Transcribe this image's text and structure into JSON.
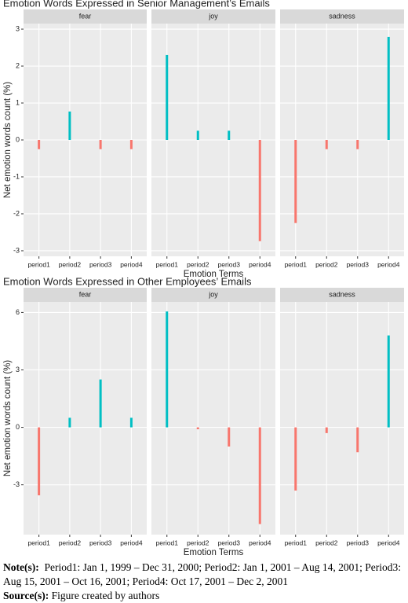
{
  "chart_data": [
    {
      "type": "bar",
      "title": "Emotion Words Expressed in Senior Management’s Emails",
      "x_label": "Emotion Terms",
      "y_label": "Net emotion words count (%)",
      "categories": [
        "period1",
        "period2",
        "period3",
        "period4"
      ],
      "facets": [
        {
          "name": "fear",
          "values": [
            -0.25,
            0.77,
            -0.25,
            -0.25
          ]
        },
        {
          "name": "joy",
          "values": [
            2.3,
            0.25,
            0.25,
            -2.74
          ]
        },
        {
          "name": "sadness",
          "values": [
            -2.25,
            -0.25,
            -0.25,
            2.79
          ]
        }
      ],
      "positive_color": "#00BFC4",
      "negative_color": "#F8766D",
      "ylim": [
        -3.15,
        3.15
      ],
      "yticks": [
        -3,
        -2,
        -1,
        0,
        1,
        2,
        3
      ],
      "grid": true
    },
    {
      "type": "bar",
      "title": "Emotion Words Expressed in Other Employees’ Emails",
      "x_label": "Emotion Terms",
      "y_label": "Net emotion words count (%)",
      "categories": [
        "period1",
        "period2",
        "period3",
        "period4"
      ],
      "facets": [
        {
          "name": "fear",
          "values": [
            -3.55,
            0.5,
            2.5,
            0.5
          ]
        },
        {
          "name": "joy",
          "values": [
            6.05,
            -0.1,
            -1.0,
            -5.05
          ]
        },
        {
          "name": "sadness",
          "values": [
            -3.3,
            -0.3,
            -1.3,
            4.8
          ]
        }
      ],
      "positive_color": "#00BFC4",
      "negative_color": "#F8766D",
      "ylim": [
        -5.6,
        6.55
      ],
      "yticks": [
        -3,
        0,
        3,
        6
      ],
      "grid": true
    }
  ],
  "notes": {
    "note_label": "Note(s):",
    "note_text": "Period1: Jan 1, 1999 – Dec 31, 2000; Period2: Jan 1, 2001 – Aug 14, 2001; Period3: Aug 15, 2001 – Oct 16, 2001; Period4: Oct 17, 2001 – Dec 2, 2001",
    "source_label": "Source(s):",
    "source_text": "Figure created by authors"
  }
}
